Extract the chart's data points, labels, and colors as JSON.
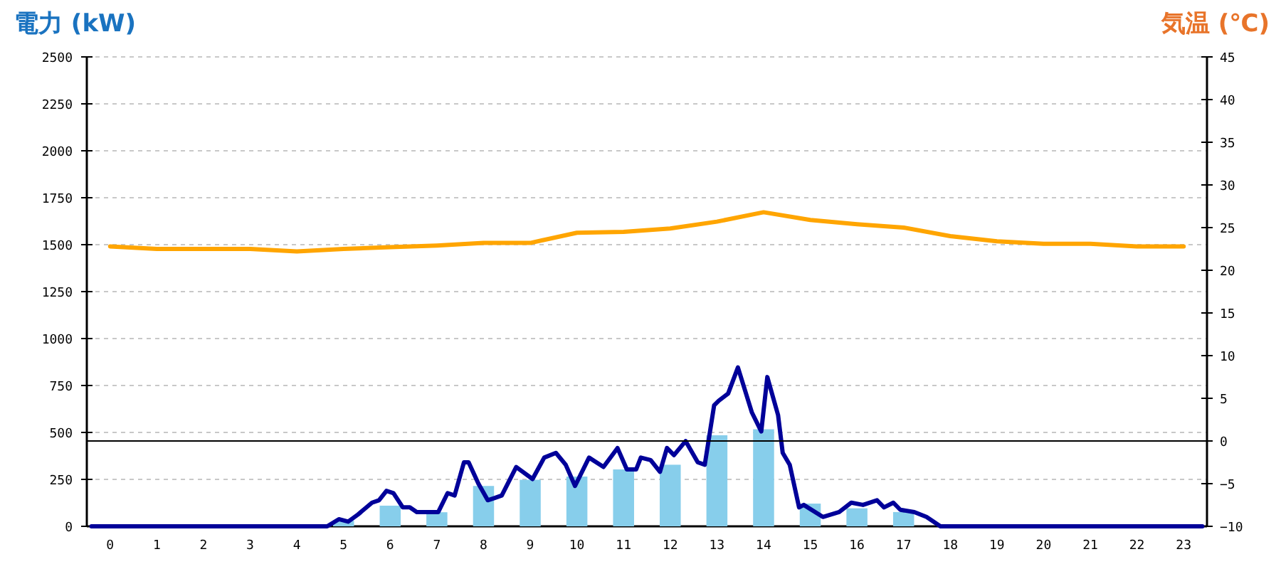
{
  "chart_data": {
    "type": "bar",
    "ylabel": "電力 (kW)",
    "y2label": "気温 (℃)",
    "x": [
      0,
      1,
      2,
      3,
      4,
      5,
      6,
      7,
      8,
      9,
      10,
      11,
      12,
      13,
      14,
      15,
      16,
      17,
      18,
      19,
      20,
      21,
      22,
      23
    ],
    "xlim": [
      -0.5,
      23.5
    ],
    "xticks": [
      0,
      1,
      2,
      3,
      4,
      5,
      6,
      7,
      8,
      9,
      10,
      11,
      12,
      13,
      14,
      15,
      16,
      17,
      18,
      19,
      20,
      21,
      22,
      23
    ],
    "ylim": [
      0,
      2500
    ],
    "yticks": [
      0,
      250,
      500,
      750,
      1000,
      1250,
      1500,
      1750,
      2000,
      2250,
      2500
    ],
    "y2lim": [
      -10,
      45
    ],
    "y2ticks": [
      -10,
      -5,
      0,
      5,
      10,
      15,
      20,
      25,
      30,
      35,
      40,
      45
    ],
    "grid": "y",
    "ref_lines": [
      {
        "axis": "y2",
        "value": 0,
        "color": "#000000"
      }
    ],
    "series": [
      {
        "color": "#87ceeb",
        "values": [
          0,
          0,
          0,
          0,
          0,
          30,
          110,
          75,
          215,
          248,
          265,
          303,
          328,
          485,
          517,
          121,
          96,
          76,
          0,
          0,
          0,
          0,
          0,
          0
        ]
      },
      {
        "type": "line",
        "color": "#000099",
        "x": [
          -0.4,
          4.65,
          4.9,
          5.1,
          5.31,
          5.61,
          5.76,
          5.92,
          6.07,
          6.27,
          6.42,
          6.57,
          7.03,
          7.23,
          7.38,
          7.58,
          7.68,
          7.89,
          8.09,
          8.24,
          8.39,
          8.7,
          9.05,
          9.3,
          9.55,
          9.76,
          9.96,
          10.26,
          10.57,
          10.87,
          11.07,
          11.27,
          11.37,
          11.58,
          11.78,
          11.93,
          12.08,
          12.33,
          12.59,
          12.74,
          12.94,
          13.04,
          13.24,
          13.45,
          13.75,
          13.95,
          14.08,
          14.31,
          14.41,
          14.56,
          14.76,
          14.86,
          15.27,
          15.62,
          15.88,
          16.13,
          16.43,
          16.58,
          16.78,
          16.93,
          17.23,
          17.49,
          17.79,
          23.4
        ],
        "values": [
          0,
          0,
          38,
          25,
          63,
          126,
          139,
          189,
          177,
          101,
          101,
          76,
          76,
          177,
          164,
          341,
          341,
          227,
          139,
          151,
          164,
          316,
          252,
          366,
          391,
          328,
          215,
          366,
          316,
          417,
          303,
          303,
          366,
          353,
          290,
          417,
          379,
          454,
          341,
          328,
          644,
          669,
          707,
          846,
          606,
          505,
          795,
          593,
          391,
          328,
          101,
          114,
          50,
          76,
          126,
          114,
          139,
          101,
          126,
          88,
          76,
          50,
          0,
          0
        ]
      },
      {
        "type": "line",
        "axis": "y2",
        "color": "#ffa500",
        "values": [
          22.8,
          22.5,
          22.5,
          22.5,
          22.2,
          22.5,
          22.7,
          22.9,
          23.2,
          23.2,
          24.4,
          24.5,
          24.9,
          25.7,
          26.8,
          25.9,
          25.4,
          25.0,
          24.0,
          23.4,
          23.1,
          23.1,
          22.8,
          22.8
        ]
      }
    ]
  }
}
